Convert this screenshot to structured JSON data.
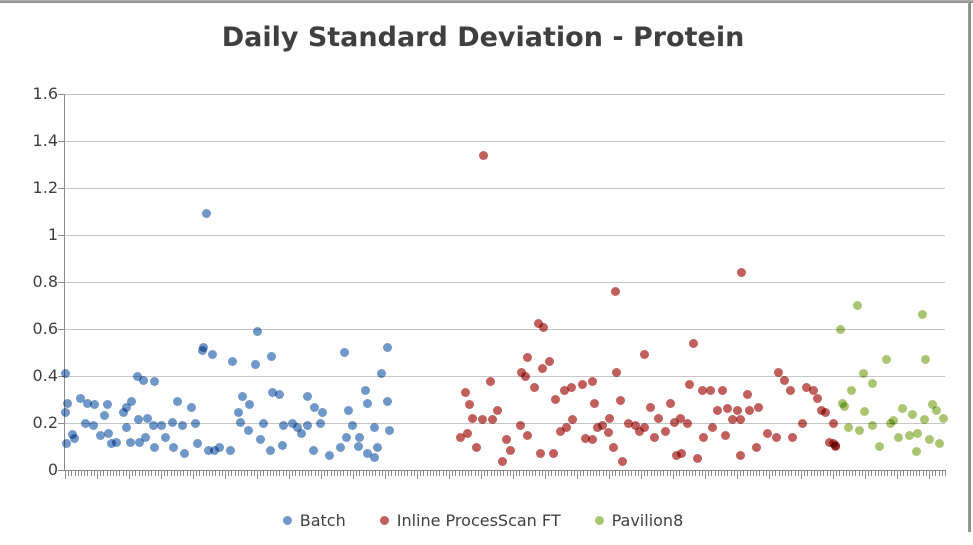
{
  "chart_data": {
    "type": "scatter",
    "title": "Daily Standard Deviation - Protein",
    "xlabel": "",
    "ylabel": "",
    "ylim": [
      0,
      1.6
    ],
    "yticks": [
      0,
      0.2,
      0.4,
      0.6,
      0.8,
      1,
      1.2,
      1.4,
      1.6
    ],
    "ytick_labels": [
      "0",
      "0.2",
      "0.4",
      "0.6",
      "0.8",
      "1",
      "1.2",
      "1.4",
      "1.6"
    ],
    "x_axis": {
      "type": "category",
      "tick_labels_visible": false,
      "minor_tick_count": 275,
      "note": "x positions of points are stored as 0-1 fractions of the axis width"
    },
    "grid": "horizontal",
    "legend_position": "bottom",
    "series": [
      {
        "name": "Batch",
        "color": "#6f97c8",
        "points": [
          [
            0.0,
            0.41
          ],
          [
            0.003,
            0.285
          ],
          [
            0.001,
            0.247
          ],
          [
            0.008,
            0.153
          ],
          [
            0.002,
            0.115
          ],
          [
            0.011,
            0.136
          ],
          [
            0.017,
            0.306
          ],
          [
            0.023,
            0.2
          ],
          [
            0.026,
            0.285
          ],
          [
            0.032,
            0.191
          ],
          [
            0.034,
            0.28
          ],
          [
            0.04,
            0.149
          ],
          [
            0.045,
            0.234
          ],
          [
            0.049,
            0.157
          ],
          [
            0.048,
            0.277
          ],
          [
            0.053,
            0.115
          ],
          [
            0.059,
            0.119
          ],
          [
            0.066,
            0.247
          ],
          [
            0.07,
            0.183
          ],
          [
            0.074,
            0.119
          ],
          [
            0.076,
            0.29
          ],
          [
            0.082,
            0.4
          ],
          [
            0.089,
            0.38
          ],
          [
            0.083,
            0.213
          ],
          [
            0.085,
            0.119
          ],
          [
            0.091,
            0.14
          ],
          [
            0.094,
            0.221
          ],
          [
            0.1,
            0.191
          ],
          [
            0.102,
            0.098
          ],
          [
            0.102,
            0.375
          ],
          [
            0.11,
            0.191
          ],
          [
            0.114,
            0.14
          ],
          [
            0.07,
            0.268
          ],
          [
            0.122,
            0.204
          ],
          [
            0.123,
            0.098
          ],
          [
            0.128,
            0.29
          ],
          [
            0.134,
            0.191
          ],
          [
            0.136,
            0.072
          ],
          [
            0.144,
            0.268
          ],
          [
            0.148,
            0.2
          ],
          [
            0.151,
            0.115
          ],
          [
            0.156,
            0.51
          ],
          [
            0.161,
            1.09
          ],
          [
            0.168,
            0.49
          ],
          [
            0.19,
            0.46
          ],
          [
            0.163,
            0.085
          ],
          [
            0.17,
            0.085
          ],
          [
            0.176,
            0.098
          ],
          [
            0.188,
            0.085
          ],
          [
            0.216,
            0.45
          ],
          [
            0.235,
            0.485
          ],
          [
            0.219,
            0.59
          ],
          [
            0.318,
            0.5
          ],
          [
            0.366,
            0.52
          ],
          [
            0.36,
            0.41
          ],
          [
            0.202,
            0.315
          ],
          [
            0.21,
            0.277
          ],
          [
            0.236,
            0.332
          ],
          [
            0.244,
            0.32
          ],
          [
            0.276,
            0.315
          ],
          [
            0.284,
            0.268
          ],
          [
            0.293,
            0.247
          ],
          [
            0.322,
            0.255
          ],
          [
            0.344,
            0.285
          ],
          [
            0.366,
            0.29
          ],
          [
            0.199,
            0.204
          ],
          [
            0.225,
            0.2
          ],
          [
            0.248,
            0.191
          ],
          [
            0.258,
            0.2
          ],
          [
            0.264,
            0.179
          ],
          [
            0.269,
            0.157
          ],
          [
            0.275,
            0.191
          ],
          [
            0.29,
            0.2
          ],
          [
            0.327,
            0.191
          ],
          [
            0.335,
            0.14
          ],
          [
            0.352,
            0.179
          ],
          [
            0.208,
            0.17
          ],
          [
            0.222,
            0.128
          ],
          [
            0.233,
            0.085
          ],
          [
            0.247,
            0.106
          ],
          [
            0.282,
            0.085
          ],
          [
            0.301,
            0.064
          ],
          [
            0.313,
            0.098
          ],
          [
            0.32,
            0.14
          ],
          [
            0.344,
            0.072
          ],
          [
            0.355,
            0.094
          ],
          [
            0.197,
            0.247
          ],
          [
            0.341,
            0.34
          ],
          [
            0.369,
            0.17
          ],
          [
            0.352,
            0.055
          ],
          [
            0.333,
            0.1
          ],
          [
            0.157,
            0.52
          ]
        ]
      },
      {
        "name": "Inline ProcesScan FT",
        "color": "#c05f5b",
        "points": [
          [
            0.475,
            1.34
          ],
          [
            0.769,
            0.84
          ],
          [
            0.625,
            0.76
          ],
          [
            0.538,
            0.625
          ],
          [
            0.544,
            0.608
          ],
          [
            0.714,
            0.54
          ],
          [
            0.659,
            0.49
          ],
          [
            0.525,
            0.48
          ],
          [
            0.551,
            0.46
          ],
          [
            0.543,
            0.434
          ],
          [
            0.519,
            0.417
          ],
          [
            0.523,
            0.396
          ],
          [
            0.483,
            0.375
          ],
          [
            0.534,
            0.353
          ],
          [
            0.599,
            0.375
          ],
          [
            0.588,
            0.362
          ],
          [
            0.568,
            0.34
          ],
          [
            0.576,
            0.35
          ],
          [
            0.627,
            0.417
          ],
          [
            0.631,
            0.298
          ],
          [
            0.602,
            0.285
          ],
          [
            0.455,
            0.33
          ],
          [
            0.46,
            0.277
          ],
          [
            0.463,
            0.221
          ],
          [
            0.449,
            0.14
          ],
          [
            0.457,
            0.157
          ],
          [
            0.468,
            0.098
          ],
          [
            0.474,
            0.213
          ],
          [
            0.486,
            0.213
          ],
          [
            0.491,
            0.255
          ],
          [
            0.497,
            0.035
          ],
          [
            0.502,
            0.128
          ],
          [
            0.506,
            0.085
          ],
          [
            0.517,
            0.191
          ],
          [
            0.525,
            0.149
          ],
          [
            0.54,
            0.072
          ],
          [
            0.555,
            0.072
          ],
          [
            0.563,
            0.162
          ],
          [
            0.57,
            0.179
          ],
          [
            0.577,
            0.213
          ],
          [
            0.591,
            0.136
          ],
          [
            0.599,
            0.128
          ],
          [
            0.605,
            0.183
          ],
          [
            0.611,
            0.191
          ],
          [
            0.623,
            0.098
          ],
          [
            0.633,
            0.035
          ],
          [
            0.64,
            0.2
          ],
          [
            0.648,
            0.191
          ],
          [
            0.653,
            0.162
          ],
          [
            0.665,
            0.268
          ],
          [
            0.688,
            0.285
          ],
          [
            0.699,
            0.221
          ],
          [
            0.674,
            0.221
          ],
          [
            0.659,
            0.183
          ],
          [
            0.67,
            0.14
          ],
          [
            0.682,
            0.162
          ],
          [
            0.693,
            0.204
          ],
          [
            0.707,
            0.2
          ],
          [
            0.71,
            0.362
          ],
          [
            0.724,
            0.34
          ],
          [
            0.733,
            0.34
          ],
          [
            0.747,
            0.34
          ],
          [
            0.741,
            0.255
          ],
          [
            0.753,
            0.264
          ],
          [
            0.764,
            0.255
          ],
          [
            0.775,
            0.32
          ],
          [
            0.778,
            0.255
          ],
          [
            0.788,
            0.268
          ],
          [
            0.767,
            0.213
          ],
          [
            0.758,
            0.213
          ],
          [
            0.736,
            0.179
          ],
          [
            0.75,
            0.149
          ],
          [
            0.725,
            0.14
          ],
          [
            0.701,
            0.072
          ],
          [
            0.695,
            0.064
          ],
          [
            0.719,
            0.051
          ],
          [
            0.767,
            0.064
          ],
          [
            0.786,
            0.094
          ],
          [
            0.798,
            0.157
          ],
          [
            0.809,
            0.14
          ],
          [
            0.827,
            0.14
          ],
          [
            0.811,
            0.417
          ],
          [
            0.818,
            0.383
          ],
          [
            0.824,
            0.34
          ],
          [
            0.843,
            0.353
          ],
          [
            0.85,
            0.34
          ],
          [
            0.855,
            0.306
          ],
          [
            0.86,
            0.255
          ],
          [
            0.864,
            0.243
          ],
          [
            0.869,
            0.119
          ],
          [
            0.875,
            0.106
          ],
          [
            0.838,
            0.2
          ],
          [
            0.873,
            0.2
          ],
          [
            0.873,
            0.115
          ],
          [
            0.876,
            0.1
          ],
          [
            0.557,
            0.3
          ],
          [
            0.619,
            0.22
          ],
          [
            0.617,
            0.16
          ]
        ]
      },
      {
        "name": "Pavilion8",
        "color": "#a9c572",
        "points": [
          [
            0.881,
            0.6
          ],
          [
            0.9,
            0.7
          ],
          [
            0.974,
            0.66
          ],
          [
            0.933,
            0.47
          ],
          [
            0.978,
            0.47
          ],
          [
            0.907,
            0.41
          ],
          [
            0.918,
            0.37
          ],
          [
            0.894,
            0.34
          ],
          [
            0.883,
            0.285
          ],
          [
            0.886,
            0.27
          ],
          [
            0.909,
            0.25
          ],
          [
            0.952,
            0.26
          ],
          [
            0.986,
            0.28
          ],
          [
            0.99,
            0.255
          ],
          [
            0.998,
            0.22
          ],
          [
            0.89,
            0.18
          ],
          [
            0.903,
            0.17
          ],
          [
            0.918,
            0.19
          ],
          [
            0.938,
            0.2
          ],
          [
            0.941,
            0.21
          ],
          [
            0.947,
            0.14
          ],
          [
            0.96,
            0.145
          ],
          [
            0.969,
            0.157
          ],
          [
            0.982,
            0.13
          ],
          [
            0.994,
            0.115
          ],
          [
            0.926,
            0.1
          ],
          [
            0.968,
            0.08
          ],
          [
            0.963,
            0.235
          ],
          [
            0.977,
            0.215
          ]
        ]
      }
    ]
  },
  "colors": {
    "title_text": "#3f3f3f",
    "axis_label_text": "#3f3f3f",
    "legend_text": "#404040",
    "gridline": "#c6c6c6",
    "axis_line": "#8c8c8c",
    "frame_top_border": "#9a9a9a",
    "frame_right_border": "#8e8e8e",
    "background": "#ffffff"
  }
}
